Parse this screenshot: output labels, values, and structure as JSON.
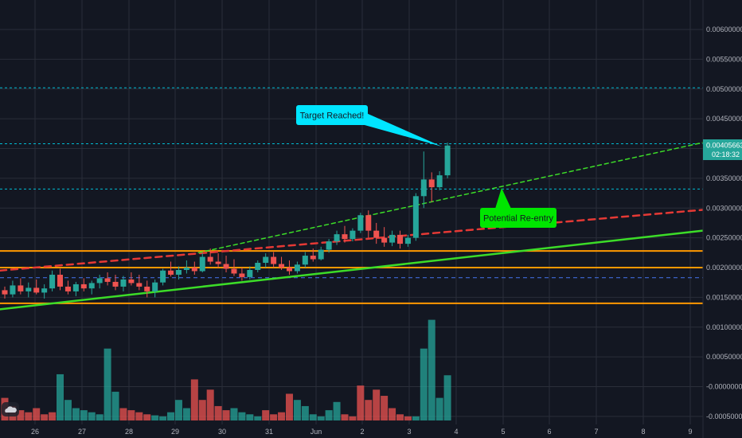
{
  "chart_data": {
    "type": "candlestick",
    "title": "",
    "xlabel": "",
    "ylabel": "",
    "ylim": [
      -0.00055,
      0.00655
    ],
    "grid": true,
    "x_tick_labels": [
      "26",
      "27",
      "28",
      "29",
      "30",
      "31",
      "Jun",
      "2",
      "3",
      "4",
      "5",
      "6",
      "7",
      "8",
      "9"
    ],
    "y_tick_labels": [
      "0.00600000",
      "0.00550000",
      "0.00500000",
      "0.00450000",
      "0.00400000",
      "0.00350000",
      "0.00300000",
      "0.00250000",
      "0.00200000",
      "0.00150000",
      "0.00100000",
      "0.00050000",
      "-0.00000000",
      "-0.00050000"
    ],
    "y_tick_values": [
      0.006,
      0.0055,
      0.005,
      0.0045,
      0.004,
      0.0035,
      0.003,
      0.0025,
      0.002,
      0.0015,
      0.001,
      0.0005,
      0.0,
      -0.0005
    ],
    "last_price_label": "0.00405663",
    "countdown_label": "02:18:32",
    "last_price": 0.00405663,
    "candles": [
      [
        0.00162,
        0.00168,
        0.00148,
        0.00155
      ],
      [
        0.00155,
        0.00178,
        0.0015,
        0.0017
      ],
      [
        0.0017,
        0.00182,
        0.00155,
        0.0016
      ],
      [
        0.0016,
        0.00175,
        0.0015,
        0.00166
      ],
      [
        0.00166,
        0.0018,
        0.00155,
        0.00158
      ],
      [
        0.00158,
        0.00172,
        0.00148,
        0.00165
      ],
      [
        0.00165,
        0.00195,
        0.0016,
        0.00188
      ],
      [
        0.00188,
        0.00198,
        0.00162,
        0.00168
      ],
      [
        0.00168,
        0.00178,
        0.00155,
        0.0016
      ],
      [
        0.0016,
        0.00176,
        0.00152,
        0.00172
      ],
      [
        0.00172,
        0.00182,
        0.0016,
        0.00165
      ],
      [
        0.00165,
        0.00178,
        0.00155,
        0.00174
      ],
      [
        0.00174,
        0.00188,
        0.00165,
        0.00182
      ],
      [
        0.00182,
        0.00192,
        0.0017,
        0.00176
      ],
      [
        0.00176,
        0.00188,
        0.00162,
        0.00168
      ],
      [
        0.00168,
        0.00186,
        0.0016,
        0.0018
      ],
      [
        0.0018,
        0.00192,
        0.0017,
        0.00174
      ],
      [
        0.00174,
        0.00188,
        0.00162,
        0.00168
      ],
      [
        0.00168,
        0.00178,
        0.0015,
        0.0016
      ],
      [
        0.0016,
        0.0018,
        0.0015,
        0.00175
      ],
      [
        0.00175,
        0.00198,
        0.0017,
        0.00195
      ],
      [
        0.00195,
        0.0021,
        0.00185,
        0.00188
      ],
      [
        0.00188,
        0.00202,
        0.0018,
        0.00196
      ],
      [
        0.00196,
        0.00212,
        0.0019,
        0.002
      ],
      [
        0.002,
        0.0021,
        0.00188,
        0.00194
      ],
      [
        0.00194,
        0.00224,
        0.00192,
        0.00218
      ],
      [
        0.00218,
        0.00232,
        0.00205,
        0.0021
      ],
      [
        0.0021,
        0.00224,
        0.002,
        0.00206
      ],
      [
        0.00206,
        0.0022,
        0.00192,
        0.00198
      ],
      [
        0.00198,
        0.00214,
        0.00186,
        0.0019
      ],
      [
        0.0019,
        0.002,
        0.00178,
        0.00184
      ],
      [
        0.00184,
        0.00202,
        0.0018,
        0.00196
      ],
      [
        0.00196,
        0.00212,
        0.00192,
        0.00208
      ],
      [
        0.00208,
        0.00224,
        0.002,
        0.00218
      ],
      [
        0.00218,
        0.00226,
        0.002,
        0.00206
      ],
      [
        0.00206,
        0.00218,
        0.00196,
        0.002
      ],
      [
        0.002,
        0.00212,
        0.00188,
        0.00194
      ],
      [
        0.00194,
        0.0021,
        0.0019,
        0.00205
      ],
      [
        0.00205,
        0.00226,
        0.002,
        0.0022
      ],
      [
        0.0022,
        0.00232,
        0.0021,
        0.00214
      ],
      [
        0.00214,
        0.00235,
        0.00212,
        0.0023
      ],
      [
        0.0023,
        0.00248,
        0.00225,
        0.00244
      ],
      [
        0.00244,
        0.00262,
        0.00238,
        0.00256
      ],
      [
        0.00256,
        0.0027,
        0.00242,
        0.00248
      ],
      [
        0.00248,
        0.00266,
        0.00244,
        0.00262
      ],
      [
        0.00262,
        0.00292,
        0.00258,
        0.00288
      ],
      [
        0.00288,
        0.00296,
        0.0025,
        0.00262
      ],
      [
        0.00262,
        0.00275,
        0.0024,
        0.0025
      ],
      [
        0.0025,
        0.00268,
        0.00235,
        0.00242
      ],
      [
        0.00242,
        0.00262,
        0.00236,
        0.00255
      ],
      [
        0.00255,
        0.00262,
        0.00232,
        0.0024
      ],
      [
        0.0024,
        0.00255,
        0.00235,
        0.0025
      ],
      [
        0.0025,
        0.00325,
        0.00245,
        0.0032
      ],
      [
        0.0032,
        0.00395,
        0.003,
        0.00348
      ],
      [
        0.00348,
        0.0036,
        0.0031,
        0.00335
      ],
      [
        0.00335,
        0.00362,
        0.0033,
        0.00355
      ],
      [
        0.00355,
        0.0041,
        0.0035,
        0.00405
      ]
    ],
    "volume": [
      22,
      14,
      10,
      8,
      12,
      6,
      8,
      45,
      20,
      12,
      10,
      8,
      6,
      70,
      28,
      12,
      10,
      8,
      6,
      5,
      4,
      8,
      20,
      12,
      40,
      20,
      30,
      14,
      10,
      12,
      8,
      6,
      4,
      10,
      6,
      8,
      26,
      20,
      14,
      6,
      4,
      10,
      18,
      6,
      4,
      34,
      20,
      30,
      24,
      12,
      6,
      4,
      4,
      70,
      98,
      22,
      44
    ],
    "volume_colors": [
      "red",
      "red",
      "red",
      "red",
      "red",
      "red",
      "red",
      "green",
      "green",
      "green",
      "green",
      "green",
      "green",
      "green",
      "green",
      "red",
      "red",
      "red",
      "red",
      "green",
      "green",
      "green",
      "green",
      "green",
      "red",
      "red",
      "red",
      "red",
      "red",
      "green",
      "green",
      "green",
      "green",
      "red",
      "red",
      "red",
      "red",
      "green",
      "green",
      "green",
      "green",
      "green",
      "green",
      "red",
      "red",
      "red",
      "red",
      "red",
      "red",
      "red",
      "red",
      "red",
      "green",
      "green",
      "green",
      "green",
      "green"
    ]
  },
  "annotations": {
    "target_label": "Target Reached!",
    "reentry_label": "Potential Re-entry"
  },
  "colors": {
    "background": "#131722",
    "grid": "#2a2e39",
    "up": "#26a69a",
    "down": "#ef5350",
    "orange_level": "#ff9800",
    "cyan_level": "#00bcd4",
    "blue_level": "#3f6ad8",
    "green_trend": "#3cdc28",
    "red_trend": "#e53935",
    "target_callout": "#00e5ff",
    "reentry_callout": "#00e600",
    "price_label_bg": "#26a69a"
  }
}
